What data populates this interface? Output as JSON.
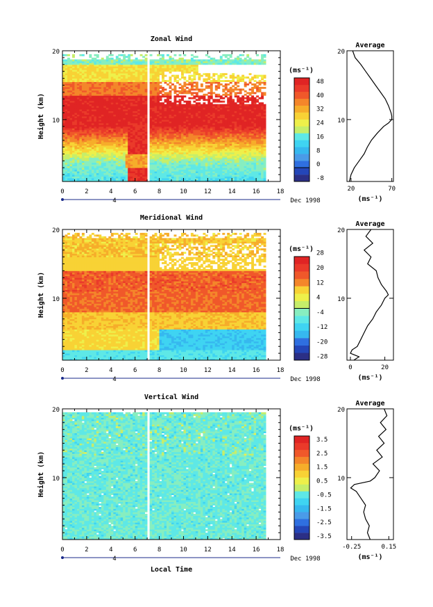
{
  "chart_data": [
    {
      "type": "heatmap",
      "title": "Zonal Wind",
      "ylabel": "Height (km)",
      "xlabel": "",
      "xlim": [
        0,
        18
      ],
      "ylim": [
        1,
        20
      ],
      "x_ticks": [
        "0",
        "2",
        "4",
        "6",
        "8",
        "10",
        "12",
        "14",
        "16",
        "18"
      ],
      "y_ticks": [
        "10",
        "20"
      ],
      "date_label": "Dec 1998",
      "day_label": "4",
      "colorbar": {
        "unit": "(ms⁻¹)",
        "levels": [
          -8,
          -4,
          0,
          4,
          8,
          12,
          16,
          20,
          24,
          28,
          32,
          36,
          40,
          44,
          48,
          52
        ],
        "labels": [
          "48",
          "40",
          "32",
          "24",
          "16",
          "8",
          "0",
          "-8"
        ],
        "zero_line": 0
      },
      "profile": {
        "title": "Average",
        "xlabel": "(ms⁻¹)",
        "x_ticks": [
          "20",
          "70"
        ],
        "xlim": [
          15,
          72
        ],
        "y_ticks": [
          "10",
          "20"
        ],
        "height": [
          1.0,
          2.0,
          3.0,
          4.0,
          5.0,
          6.0,
          7.0,
          8.0,
          9.0,
          9.5,
          10.0,
          10.5,
          11.0,
          12.0,
          13.0,
          14.0,
          15.0,
          16.0,
          17.0,
          18.0,
          19.0,
          20.0
        ],
        "values": [
          18,
          20,
          24,
          30,
          36,
          40,
          45,
          52,
          60,
          66,
          70,
          70,
          69,
          66,
          62,
          56,
          50,
          44,
          38,
          32,
          25,
          22
        ]
      }
    },
    {
      "type": "heatmap",
      "title": "Meridional Wind",
      "ylabel": "Height (km)",
      "xlabel": "",
      "xlim": [
        0,
        18
      ],
      "ylim": [
        1,
        20
      ],
      "x_ticks": [
        "0",
        "2",
        "4",
        "6",
        "8",
        "10",
        "12",
        "14",
        "16",
        "18"
      ],
      "y_ticks": [
        "10",
        "20"
      ],
      "date_label": "Dec 1998",
      "day_label": "4",
      "colorbar": {
        "unit": "(ms⁻¹)",
        "levels": [
          -28,
          -24,
          -20,
          -16,
          -12,
          -8,
          -4,
          0,
          4,
          8,
          12,
          16,
          20,
          24,
          28
        ],
        "labels": [
          "28",
          "20",
          "12",
          "4",
          "-4",
          "-12",
          "-20",
          "-28"
        ],
        "zero_line": 0
      },
      "profile": {
        "title": "Average",
        "xlabel": "(ms⁻¹)",
        "x_ticks": [
          "0",
          "20"
        ],
        "xlim": [
          -2,
          25
        ],
        "y_ticks": [
          "10",
          "20"
        ],
        "height": [
          1.0,
          1.5,
          2.0,
          2.5,
          3.0,
          4.0,
          5.0,
          6.0,
          7.0,
          8.0,
          9.0,
          10.0,
          10.5,
          11.0,
          12.0,
          13.0,
          14.0,
          15.0,
          16.0,
          17.0,
          18.0,
          19.0,
          20.0
        ],
        "values": [
          2,
          5,
          0,
          1,
          4,
          6,
          8,
          10,
          13,
          15,
          18,
          20,
          22,
          21,
          18,
          16,
          15,
          10,
          12,
          8,
          13,
          9,
          12
        ]
      }
    },
    {
      "type": "heatmap",
      "title": "Vertical Wind",
      "ylabel": "Height (km)",
      "xlabel": "Local Time",
      "xlim": [
        0,
        18
      ],
      "ylim": [
        1,
        20
      ],
      "x_ticks": [
        "0",
        "2",
        "4",
        "6",
        "8",
        "10",
        "12",
        "14",
        "16",
        "18"
      ],
      "y_ticks": [
        "10",
        "20"
      ],
      "date_label": "Dec 1998",
      "day_label": "4",
      "colorbar": {
        "unit": "(ms⁻¹)",
        "levels": [
          -3.5,
          -3.0,
          -2.5,
          -2.0,
          -1.5,
          -1.0,
          -0.5,
          0,
          0.5,
          1.0,
          1.5,
          2.0,
          2.5,
          3.0,
          3.5,
          4.0
        ],
        "labels": [
          "3.5",
          "2.5",
          "1.5",
          "0.5",
          "-0.5",
          "-1.5",
          "-2.5",
          "-3.5"
        ]
      },
      "profile": {
        "title": "Average",
        "xlabel": "(ms⁻¹)",
        "x_ticks": [
          "-0.25",
          "0.15"
        ],
        "xlim": [
          -0.3,
          0.2
        ],
        "y_ticks": [
          "10",
          "20"
        ],
        "height": [
          1.0,
          2.0,
          3.0,
          4.0,
          5.0,
          6.0,
          7.0,
          8.0,
          8.5,
          9.0,
          9.5,
          10.0,
          11.0,
          12.0,
          13.0,
          14.0,
          15.0,
          16.0,
          17.0,
          18.0,
          19.0,
          20.0
        ],
        "values": [
          -0.05,
          -0.08,
          -0.06,
          -0.1,
          -0.12,
          -0.1,
          -0.15,
          -0.2,
          -0.26,
          -0.22,
          -0.05,
          0.0,
          0.05,
          -0.02,
          0.08,
          0.02,
          0.1,
          0.04,
          0.12,
          0.06,
          0.13,
          0.1
        ]
      }
    }
  ]
}
